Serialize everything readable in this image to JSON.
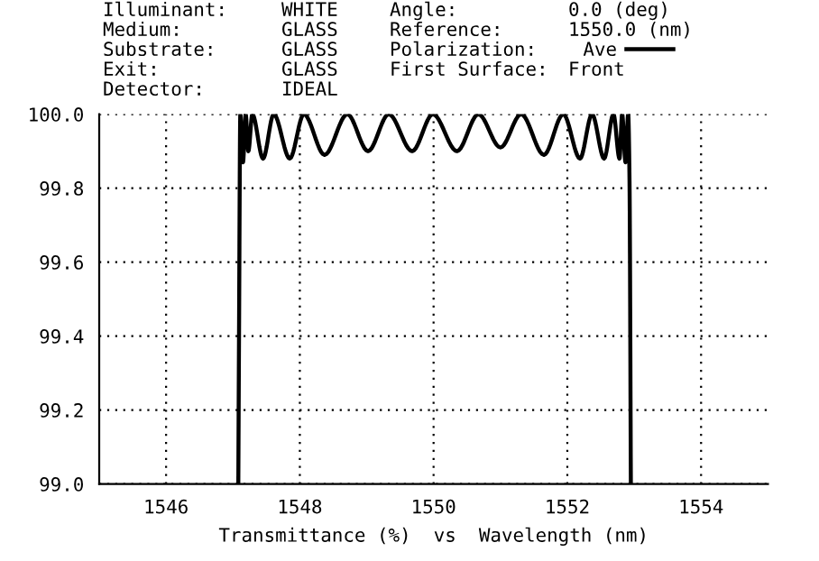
{
  "chart_data": {
    "type": "line",
    "xlabel": "Transmittance (%)  vs  Wavelength (nm)",
    "annotations": [
      "Illuminant:",
      "WHITE",
      "Angle:",
      "0.0 (deg)",
      "Medium:",
      "GLASS",
      "Reference:",
      "1550.0 (nm)",
      "Substrate:",
      "GLASS",
      "Polarization:",
      "Exit:",
      "GLASS",
      "First Surface:",
      "Front",
      "Detector:",
      "IDEAL"
    ],
    "x": [
      1547.08,
      1547.09,
      1547.11,
      1547.15,
      1547.19,
      1547.23,
      1547.29,
      1547.45,
      1547.61,
      1547.85,
      1548.06,
      1548.37,
      1548.71,
      1549.02,
      1549.33,
      1549.68,
      1549.99,
      1550.35,
      1550.67,
      1551.0,
      1551.31,
      1551.65,
      1551.94,
      1552.19,
      1552.37,
      1552.55,
      1552.69,
      1552.78,
      1552.82,
      1552.87,
      1552.91,
      1552.93,
      1552.95
    ],
    "series": [
      {
        "name": "Ave",
        "color": "#000000",
        "values": [
          99.0,
          99.38,
          100.0,
          99.87,
          100.0,
          99.9,
          100.0,
          99.88,
          100.0,
          99.88,
          100.0,
          99.89,
          100.0,
          99.9,
          100.0,
          99.9,
          100.0,
          99.9,
          100.0,
          99.91,
          100.0,
          99.89,
          100.0,
          99.88,
          100.0,
          99.88,
          100.0,
          99.88,
          100.0,
          99.87,
          100.0,
          99.82,
          99.0
        ]
      }
    ],
    "xlim": [
      1545,
      1555
    ],
    "xticks": [
      1546,
      1548,
      1550,
      1552,
      1554
    ],
    "ylim": [
      99.0,
      100.0
    ],
    "yticks": [
      {
        "value": 99.0,
        "label": "99.0"
      },
      {
        "value": 99.2,
        "label": "99.2"
      },
      {
        "value": 99.4,
        "label": "99.4"
      },
      {
        "value": 99.6,
        "label": "99.6"
      },
      {
        "value": 99.8,
        "label": "99.8"
      },
      {
        "value": 100.0,
        "label": "100.0"
      }
    ],
    "grid": true,
    "legend": "top",
    "line_style": "solid",
    "marker": "none"
  }
}
